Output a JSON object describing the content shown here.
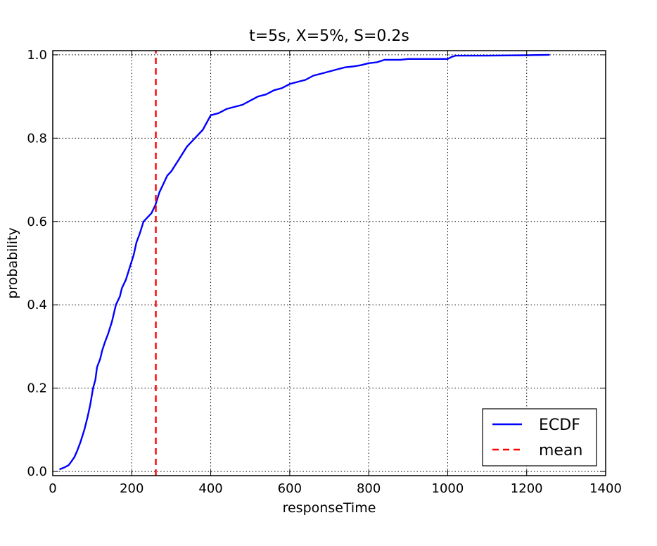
{
  "chart_data": {
    "type": "line",
    "title": "t=5s, X=5%, S=0.2s",
    "xlabel": "responseTime",
    "ylabel": "probability",
    "xlim": [
      0,
      1400
    ],
    "ylim": [
      -0.01,
      1.01
    ],
    "xticks": [
      0,
      200,
      400,
      600,
      800,
      1000,
      1200,
      1400
    ],
    "yticks": [
      0.0,
      0.2,
      0.4,
      0.6,
      0.8,
      1.0
    ],
    "xtick_labels": [
      "0",
      "200",
      "400",
      "600",
      "800",
      "1000",
      "1200",
      "1400"
    ],
    "ytick_labels": [
      "0.0",
      "0.2",
      "0.4",
      "0.6",
      "0.8",
      "1.0"
    ],
    "grid": true,
    "legend_position": "bottom-right",
    "colors": {
      "ecdf": "#0000ff",
      "mean": "#ff0000"
    },
    "series": [
      {
        "name": "ECDF",
        "style": "solid",
        "x": [
          17,
          30,
          40,
          48,
          55,
          62,
          70,
          80,
          88,
          95,
          102,
          108,
          112,
          120,
          125,
          132,
          140,
          150,
          160,
          170,
          175,
          185,
          195,
          205,
          212,
          220,
          230,
          240,
          250,
          260,
          270,
          280,
          290,
          300,
          320,
          340,
          360,
          380,
          400,
          420,
          440,
          460,
          480,
          500,
          520,
          540,
          560,
          580,
          600,
          620,
          640,
          660,
          680,
          700,
          720,
          740,
          760,
          780,
          800,
          820,
          840,
          860,
          880,
          900,
          950,
          1000,
          1010,
          1020,
          1100,
          1200,
          1258
        ],
        "y": [
          0.005,
          0.01,
          0.015,
          0.025,
          0.035,
          0.05,
          0.07,
          0.1,
          0.13,
          0.16,
          0.2,
          0.22,
          0.25,
          0.27,
          0.29,
          0.31,
          0.33,
          0.36,
          0.4,
          0.42,
          0.44,
          0.46,
          0.49,
          0.52,
          0.55,
          0.57,
          0.6,
          0.61,
          0.62,
          0.64,
          0.67,
          0.69,
          0.71,
          0.72,
          0.75,
          0.78,
          0.8,
          0.82,
          0.855,
          0.86,
          0.87,
          0.875,
          0.88,
          0.89,
          0.9,
          0.905,
          0.915,
          0.92,
          0.93,
          0.935,
          0.94,
          0.95,
          0.955,
          0.96,
          0.965,
          0.97,
          0.972,
          0.975,
          0.98,
          0.982,
          0.988,
          0.988,
          0.988,
          0.99,
          0.99,
          0.99,
          0.995,
          0.998,
          0.998,
          0.999,
          1.0
        ]
      },
      {
        "name": "mean",
        "style": "dashed",
        "x": [
          261,
          261
        ],
        "y": [
          -0.01,
          1.01
        ]
      }
    ]
  }
}
